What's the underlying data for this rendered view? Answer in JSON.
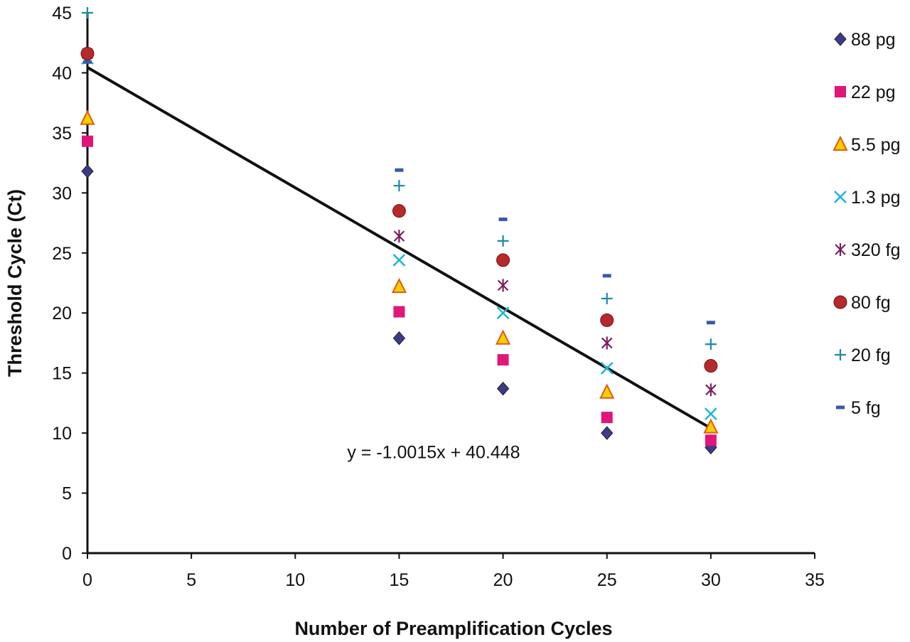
{
  "chart_data": {
    "type": "scatter",
    "title": "",
    "xlabel": "Number of Preamplification Cycles",
    "ylabel": "Threshold Cycle (Ct)",
    "xlim": [
      0,
      35
    ],
    "ylim": [
      0,
      45
    ],
    "x_ticks": [
      0,
      5,
      10,
      15,
      20,
      25,
      30,
      35
    ],
    "y_ticks": [
      0,
      5,
      10,
      15,
      20,
      25,
      30,
      35,
      40,
      45
    ],
    "grid": false,
    "legend_position": "right",
    "x": [
      0,
      15,
      20,
      25,
      30
    ],
    "series": [
      {
        "name": "88 pg",
        "marker": "diamond",
        "color": "#3d3a8c",
        "values": [
          31.8,
          17.9,
          13.7,
          10.0,
          8.8
        ]
      },
      {
        "name": "22 pg",
        "marker": "square",
        "color": "#e0167a",
        "values": [
          34.3,
          20.1,
          16.1,
          11.3,
          9.4
        ]
      },
      {
        "name": "5.5 pg",
        "marker": "triangle",
        "color": "#f5d000",
        "values": [
          36.2,
          22.2,
          17.9,
          13.4,
          10.5
        ]
      },
      {
        "name": "1.3 pg",
        "marker": "x",
        "color": "#19b6d8",
        "values": [
          41.2,
          24.4,
          20.0,
          15.4,
          11.6
        ]
      },
      {
        "name": "320 fg",
        "marker": "asterisk",
        "color": "#7a1f5c",
        "values": [
          41.6,
          26.4,
          22.3,
          17.5,
          13.6
        ]
      },
      {
        "name": "80 fg",
        "marker": "circle",
        "color": "#b52a2a",
        "values": [
          41.6,
          28.5,
          24.4,
          19.4,
          15.6
        ]
      },
      {
        "name": "20 fg",
        "marker": "plus",
        "color": "#1a8aa8",
        "values": [
          45.0,
          30.6,
          26.0,
          21.2,
          17.4
        ]
      },
      {
        "name": "5 fg",
        "marker": "dash",
        "color": "#3a5aa8",
        "values": [
          40.9,
          31.9,
          27.8,
          23.1,
          19.2
        ]
      }
    ],
    "trendline": {
      "slope": -1.0015,
      "intercept": 40.448,
      "x_range": [
        0,
        30
      ]
    },
    "annotations": [
      {
        "text": "y = -1.0015x + 40.448",
        "x": 12.5,
        "y": 8.5
      }
    ]
  }
}
